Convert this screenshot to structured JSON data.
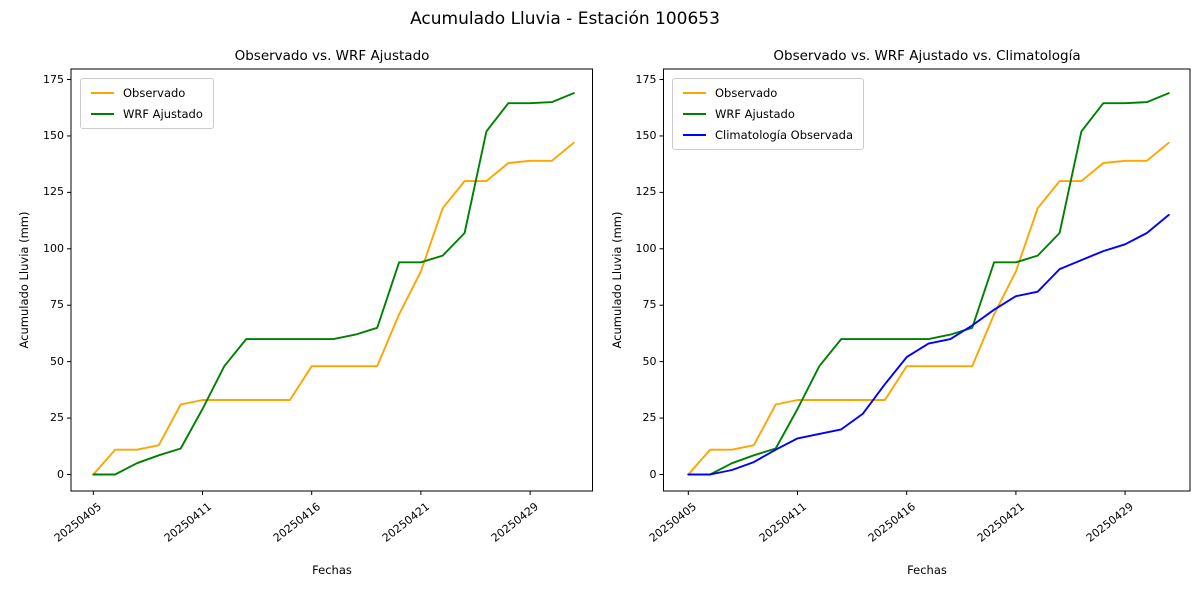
{
  "suptitle": "Acumulado Lluvia - Estación 100653",
  "figure": {
    "background": "#FFFFFF",
    "axis_color": "#000000"
  },
  "chart_data": [
    {
      "type": "line",
      "title": "Observado vs. WRF Ajustado",
      "xlabel": "Fechas",
      "ylabel": "Acumulado Lluvia (mm)",
      "ylim": [
        -7,
        180
      ],
      "y_ticks": [
        0,
        25,
        50,
        75,
        100,
        125,
        150,
        175
      ],
      "x_tick_labels": [
        "20250405",
        "20250411",
        "20250416",
        "20250421",
        "20250429"
      ],
      "x_tick_indices": [
        0,
        5,
        10,
        15,
        20
      ],
      "x_tick_rotation_deg": 38,
      "n_points": 23,
      "grid": false,
      "legend_position": "upper-left",
      "series": [
        {
          "name": "Observado",
          "color": "#FFA500",
          "values": [
            0,
            11,
            11,
            13,
            31,
            33,
            33,
            33,
            33,
            33,
            48,
            48,
            48,
            48,
            71,
            90,
            118,
            130,
            130,
            138,
            139,
            139,
            147
          ]
        },
        {
          "name": "WRF Ajustado",
          "color": "#008000",
          "values": [
            0,
            0,
            5,
            8.5,
            11.5,
            29,
            48,
            60,
            60,
            60,
            60,
            60,
            62,
            65,
            94,
            94,
            97,
            107,
            152,
            164.5,
            164.5,
            165,
            169
          ]
        }
      ]
    },
    {
      "type": "line",
      "title": "Observado vs. WRF Ajustado vs. Climatología",
      "xlabel": "Fechas",
      "ylabel": "Acumulado Lluvia (mm)",
      "ylim": [
        -7,
        180
      ],
      "y_ticks": [
        0,
        25,
        50,
        75,
        100,
        125,
        150,
        175
      ],
      "x_tick_labels": [
        "20250405",
        "20250411",
        "20250416",
        "20250421",
        "20250429"
      ],
      "x_tick_indices": [
        0,
        5,
        10,
        15,
        20
      ],
      "x_tick_rotation_deg": 38,
      "n_points": 23,
      "grid": false,
      "legend_position": "upper-left",
      "series": [
        {
          "name": "Observado",
          "color": "#FFA500",
          "values": [
            0,
            11,
            11,
            13,
            31,
            33,
            33,
            33,
            33,
            33,
            48,
            48,
            48,
            48,
            71,
            90,
            118,
            130,
            130,
            138,
            139,
            139,
            147
          ]
        },
        {
          "name": "WRF Ajustado",
          "color": "#008000",
          "values": [
            0,
            0,
            5,
            8.5,
            11.5,
            29,
            48,
            60,
            60,
            60,
            60,
            60,
            62,
            65,
            94,
            94,
            97,
            107,
            152,
            164.5,
            164.5,
            165,
            169
          ]
        },
        {
          "name": "Climatología Observada",
          "color": "#0000FF",
          "values": [
            0,
            0,
            2,
            5.5,
            11,
            16,
            18,
            20,
            27,
            40,
            52,
            58,
            60,
            66,
            73,
            79,
            81,
            91,
            95,
            99,
            102,
            107,
            115
          ]
        }
      ]
    }
  ]
}
